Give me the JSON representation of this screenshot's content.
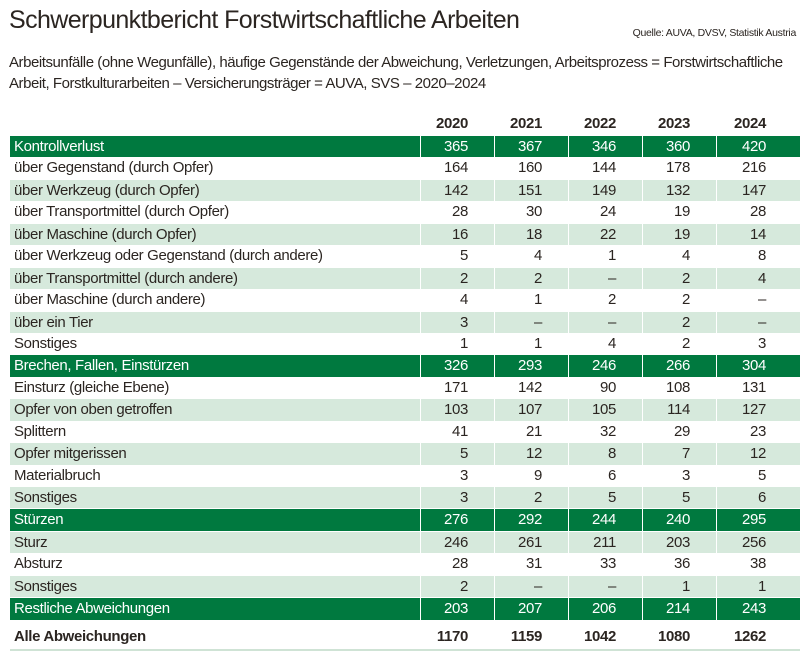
{
  "title": "Schwerpunktbericht Forstwirtschaftliche Arbeiten",
  "source": "Quelle: AUVA, DVSV, Statistik Austria",
  "subtitle": "Arbeitsunfälle (ohne Wegunfälle), häufige Gegenstände der Abweichung, Verletzungen, Arbeitsprozess = Forstwirtschaftliche Arbeit, Forstkulturarbeiten – Versicherungsträger = AUVA, SVS – 2020–2024",
  "colors": {
    "section": "#00793f",
    "shaded": "#d6e9dc",
    "text": "#2b2521"
  },
  "chart_data": {
    "type": "table",
    "columns": [
      "2020",
      "2021",
      "2022",
      "2023",
      "2024"
    ],
    "rows": [
      {
        "label": "Kontrollverlust",
        "kind": "section",
        "values": [
          "365",
          "367",
          "346",
          "360",
          "420"
        ]
      },
      {
        "label": "über Gegenstand (durch Opfer)",
        "kind": "item",
        "shaded": false,
        "values": [
          "164",
          "160",
          "144",
          "178",
          "216"
        ]
      },
      {
        "label": "über Werkzeug (durch Opfer)",
        "kind": "item",
        "shaded": true,
        "values": [
          "142",
          "151",
          "149",
          "132",
          "147"
        ]
      },
      {
        "label": "über Transportmittel (durch Opfer)",
        "kind": "item",
        "shaded": false,
        "values": [
          "28",
          "30",
          "24",
          "19",
          "28"
        ]
      },
      {
        "label": "über Maschine (durch Opfer)",
        "kind": "item",
        "shaded": true,
        "values": [
          "16",
          "18",
          "22",
          "19",
          "14"
        ]
      },
      {
        "label": "über Werkzeug oder Gegenstand (durch andere)",
        "kind": "item",
        "shaded": false,
        "values": [
          "5",
          "4",
          "1",
          "4",
          "8"
        ]
      },
      {
        "label": "über Transportmittel (durch andere)",
        "kind": "item",
        "shaded": true,
        "values": [
          "2",
          "2",
          "–",
          "2",
          "4"
        ]
      },
      {
        "label": "über Maschine (durch andere)",
        "kind": "item",
        "shaded": false,
        "values": [
          "4",
          "1",
          "2",
          "2",
          "–"
        ]
      },
      {
        "label": "über ein Tier",
        "kind": "item",
        "shaded": true,
        "values": [
          "3",
          "–",
          "–",
          "2",
          "–"
        ]
      },
      {
        "label": "Sonstiges",
        "kind": "item",
        "shaded": false,
        "values": [
          "1",
          "1",
          "4",
          "2",
          "3"
        ]
      },
      {
        "label": "Brechen, Fallen, Einstürzen",
        "kind": "section",
        "values": [
          "326",
          "293",
          "246",
          "266",
          "304"
        ]
      },
      {
        "label": "Einsturz (gleiche Ebene)",
        "kind": "item",
        "shaded": false,
        "values": [
          "171",
          "142",
          "90",
          "108",
          "131"
        ]
      },
      {
        "label": "Opfer von oben getroffen",
        "kind": "item",
        "shaded": true,
        "values": [
          "103",
          "107",
          "105",
          "114",
          "127"
        ]
      },
      {
        "label": "Splittern",
        "kind": "item",
        "shaded": false,
        "values": [
          "41",
          "21",
          "32",
          "29",
          "23"
        ]
      },
      {
        "label": "Opfer mitgerissen",
        "kind": "item",
        "shaded": true,
        "values": [
          "5",
          "12",
          "8",
          "7",
          "12"
        ]
      },
      {
        "label": "Materialbruch",
        "kind": "item",
        "shaded": false,
        "values": [
          "3",
          "9",
          "6",
          "3",
          "5"
        ]
      },
      {
        "label": "Sonstiges",
        "kind": "item",
        "shaded": true,
        "values": [
          "3",
          "2",
          "5",
          "5",
          "6"
        ]
      },
      {
        "label": "Stürzen",
        "kind": "section",
        "values": [
          "276",
          "292",
          "244",
          "240",
          "295"
        ]
      },
      {
        "label": "Sturz",
        "kind": "item",
        "shaded": true,
        "values": [
          "246",
          "261",
          "211",
          "203",
          "256"
        ]
      },
      {
        "label": "Absturz",
        "kind": "item",
        "shaded": false,
        "values": [
          "28",
          "31",
          "33",
          "36",
          "38"
        ]
      },
      {
        "label": "Sonstiges",
        "kind": "item",
        "shaded": true,
        "values": [
          "2",
          "–",
          "–",
          "1",
          "1"
        ]
      },
      {
        "label": "Restliche Abweichungen",
        "kind": "section",
        "values": [
          "203",
          "207",
          "206",
          "214",
          "243"
        ]
      }
    ],
    "total": {
      "label": "Alle Abweichungen",
      "values": [
        "1170",
        "1159",
        "1042",
        "1080",
        "1262"
      ]
    }
  }
}
